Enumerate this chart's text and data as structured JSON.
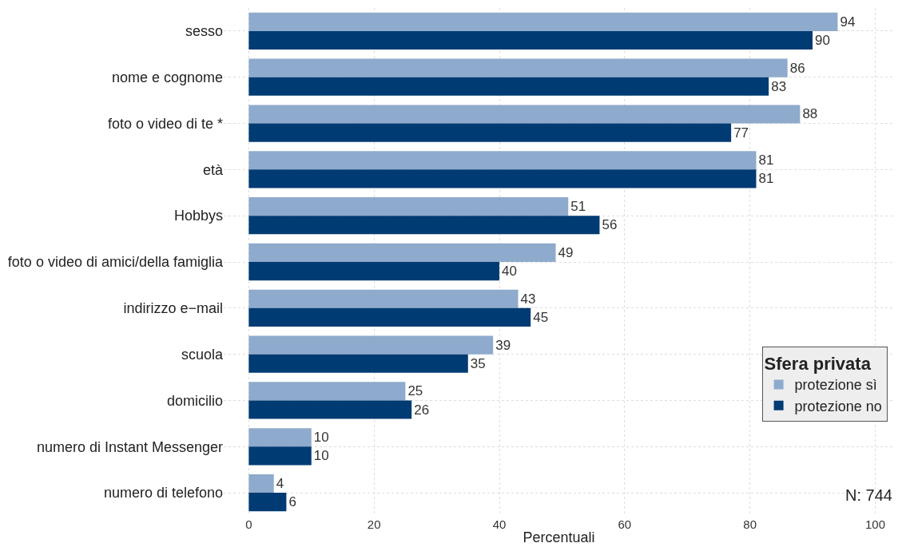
{
  "chart_data": {
    "type": "bar",
    "orientation": "horizontal",
    "xlabel": "Percentuali",
    "legend_title": "Sfera privata",
    "categories": [
      "sesso",
      "nome e cognome",
      "foto o video di te *",
      "età",
      "Hobbys",
      "foto o video di amici/della famiglia",
      "indirizzo e−mail",
      "scuola",
      "domicilio",
      "numero di Instant Messenger",
      "numero di telefono"
    ],
    "series": [
      {
        "name": "protezione sì",
        "color": "#8eaacc",
        "values": [
          94,
          86,
          88,
          81,
          51,
          49,
          43,
          39,
          25,
          10,
          4
        ]
      },
      {
        "name": "protezione no",
        "color": "#003b73",
        "values": [
          90,
          83,
          77,
          81,
          56,
          40,
          45,
          35,
          26,
          10,
          6
        ]
      }
    ],
    "xlim": [
      -4,
      103
    ],
    "xticks": [
      0,
      20,
      40,
      60,
      80,
      100
    ],
    "grid": true,
    "legend": "right",
    "data_labels": true,
    "annotations": [
      "N: 744"
    ]
  }
}
